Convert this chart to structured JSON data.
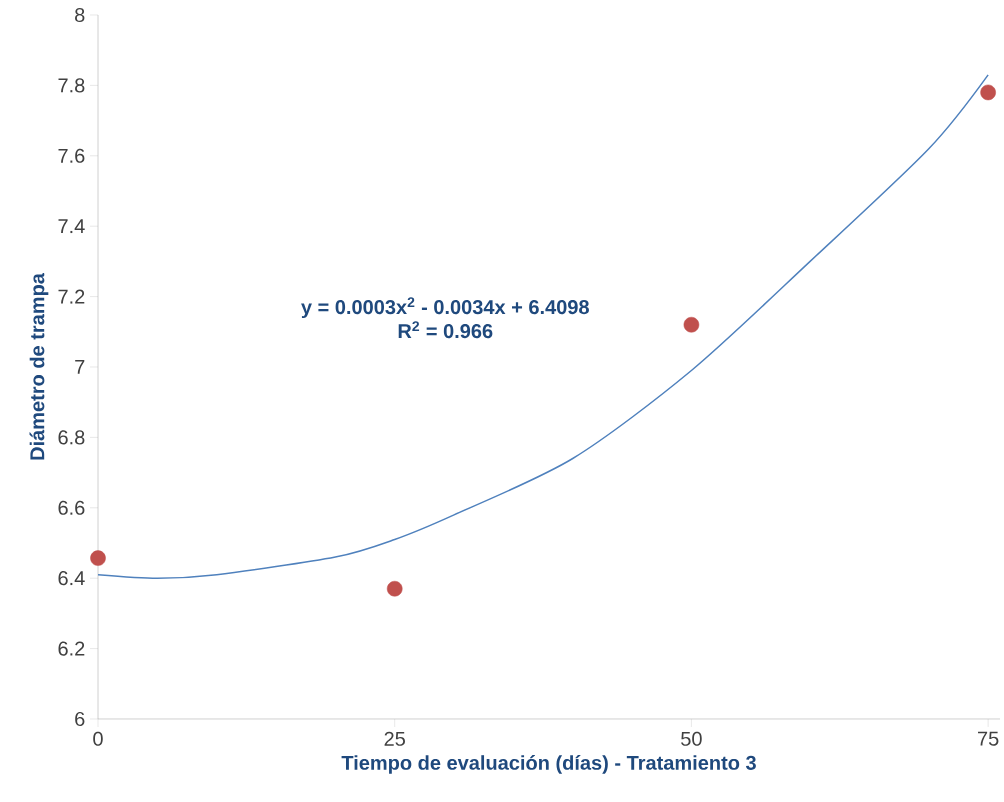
{
  "chart_data": {
    "type": "scatter",
    "xlabel": "Tiempo de evaluación (días) - Tratamiento 3",
    "ylabel": "Diámetro de trampa",
    "x": [
      0,
      25,
      50,
      75
    ],
    "series": [
      {
        "color": "#c0504d",
        "values": [
          6.457,
          6.37,
          7.12,
          7.78
        ],
        "marker": "circle"
      },
      {
        "type": "line",
        "color": "#4f81bd",
        "x": [
          0,
          5,
          10,
          20,
          25,
          30,
          40,
          50,
          60,
          70,
          75
        ],
        "values": [
          6.41,
          6.4,
          6.41,
          6.46,
          6.51,
          6.58,
          6.74,
          6.99,
          7.3,
          7.62,
          7.83
        ],
        "marker": "none"
      }
    ],
    "annotations": [
      "y = 0.0003x$^{2}$ - 0.0034x + 6.4098",
      "R$^{2}$ = 0.966"
    ],
    "xlim": [
      0,
      76
    ],
    "ylim": [
      6,
      8
    ],
    "xticks": [
      0,
      25,
      50,
      75
    ],
    "yticks": [
      6,
      6.2,
      6.4,
      6.6,
      6.8,
      7,
      7.2,
      7.4,
      7.6,
      7.8,
      8
    ],
    "grid": false
  }
}
